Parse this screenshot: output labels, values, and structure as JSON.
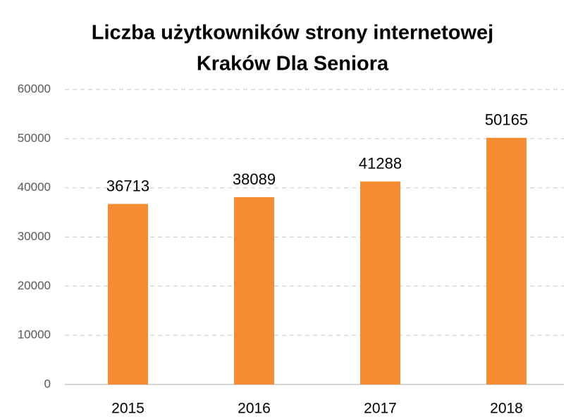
{
  "chart_data": {
    "type": "bar",
    "title": [
      "Liczba użytkowników strony internetowej",
      "Kraków Dla Seniora"
    ],
    "categories": [
      "2015",
      "2016",
      "2017",
      "2018"
    ],
    "values": [
      36713,
      38089,
      41288,
      50165
    ],
    "color": "#f58b32",
    "ylim": [
      0,
      60000
    ],
    "yticks": [
      0,
      10000,
      20000,
      30000,
      40000,
      50000,
      60000
    ],
    "grid": true
  }
}
